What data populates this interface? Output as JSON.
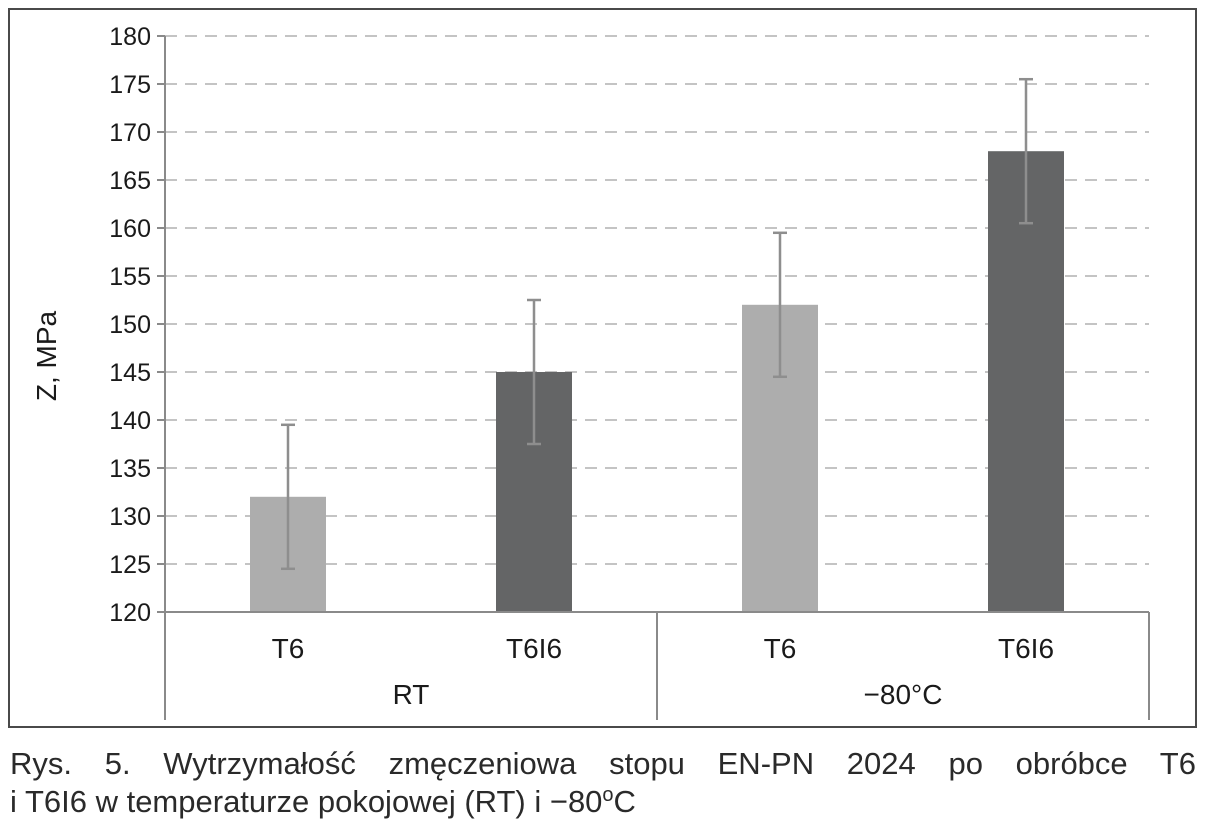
{
  "chart_data": {
    "type": "bar",
    "ylabel": "Z, MPa",
    "xlabel": "",
    "ylim": [
      120,
      180
    ],
    "yticks": [
      120,
      125,
      130,
      135,
      140,
      145,
      150,
      155,
      160,
      165,
      170,
      175,
      180
    ],
    "grid": true,
    "groups": [
      {
        "label": "RT",
        "bars": [
          {
            "label": "T6",
            "value": 132,
            "error": 7.5,
            "color": "#adadad"
          },
          {
            "label": "T6I6",
            "value": 145,
            "error": 7.5,
            "color": "#646566"
          }
        ]
      },
      {
        "label": "−80°C",
        "bars": [
          {
            "label": "T6",
            "value": 152,
            "error": 7.5,
            "color": "#adadad"
          },
          {
            "label": "T6I6",
            "value": 168,
            "error": 7.5,
            "color": "#646566"
          }
        ]
      }
    ]
  },
  "caption": {
    "line1": "Rys. 5. Wytrzymałość zmęczeniowa stopu EN-PN 2024 po obróbce T6",
    "line2_before": "i T6I6 w temperaturze pokojowej (RT) i −80",
    "line2_sup": "o",
    "line2_after": "C"
  }
}
